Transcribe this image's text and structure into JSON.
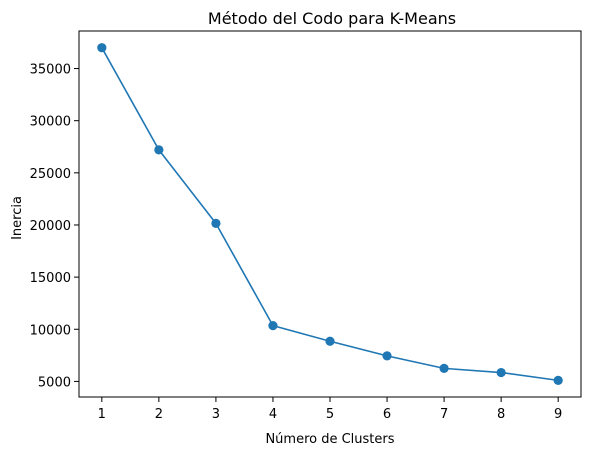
{
  "chart_data": {
    "type": "line",
    "title": "Método del Codo para K-Means",
    "xlabel": "Número de Clusters",
    "ylabel": "Inercia",
    "x": [
      1,
      2,
      3,
      4,
      5,
      6,
      7,
      8,
      9
    ],
    "series": [
      {
        "values": [
          37000,
          27200,
          20150,
          10350,
          8850,
          7450,
          6250,
          5850,
          5100
        ],
        "marker": "circle",
        "color": "#1f77b4"
      }
    ],
    "xticks": [
      1,
      2,
      3,
      4,
      5,
      6,
      7,
      8,
      9
    ],
    "yticks": [
      5000,
      10000,
      15000,
      20000,
      25000,
      30000,
      35000
    ],
    "xlim": [
      0.6,
      9.4
    ],
    "ylim": [
      3505,
      38600
    ],
    "grid": false,
    "legend": "none"
  }
}
